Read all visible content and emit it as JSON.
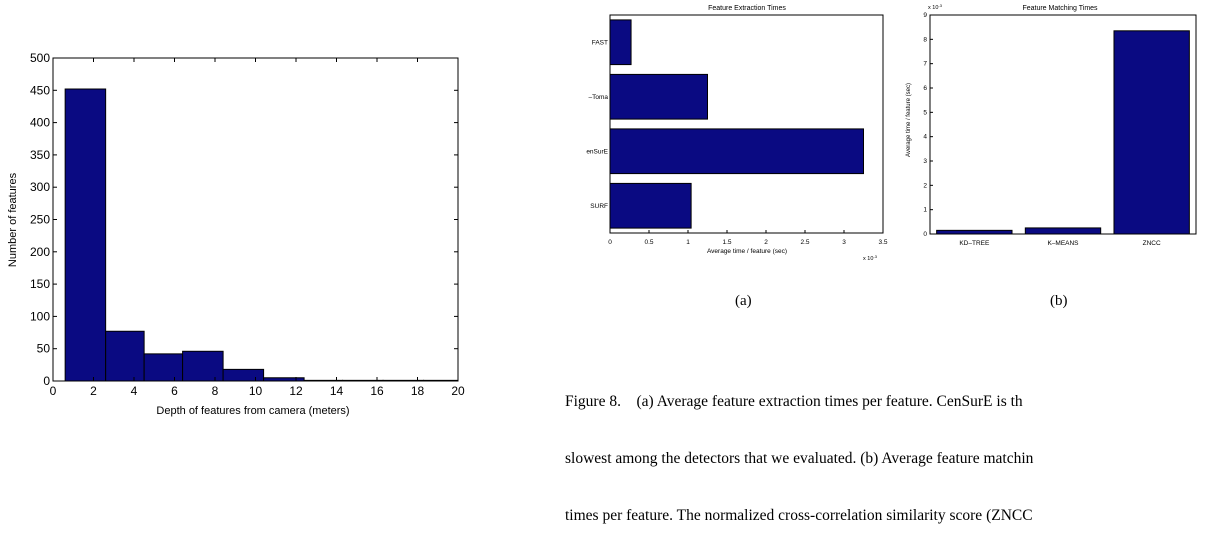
{
  "colors": {
    "bar": "#0a0a82",
    "axis": "#000000",
    "background": "#ffffff"
  },
  "chart_data": [
    {
      "type": "bar",
      "title": "",
      "xlabel": "Depth of features from camera (meters)",
      "ylabel": "Number of features",
      "xlim": [
        0,
        20
      ],
      "ylim": [
        0,
        500
      ],
      "xticks": [
        0,
        2,
        4,
        6,
        8,
        10,
        12,
        14,
        16,
        18,
        20
      ],
      "yticks": [
        0,
        50,
        100,
        150,
        200,
        250,
        300,
        350,
        400,
        450,
        500
      ],
      "bins": [
        {
          "start": 0.6,
          "end": 2.6,
          "value": 452
        },
        {
          "start": 2.6,
          "end": 4.5,
          "value": 77
        },
        {
          "start": 4.5,
          "end": 6.4,
          "value": 42
        },
        {
          "start": 6.4,
          "end": 8.4,
          "value": 46
        },
        {
          "start": 8.4,
          "end": 10.4,
          "value": 18
        },
        {
          "start": 10.4,
          "end": 12.4,
          "value": 5
        },
        {
          "start": 12.4,
          "end": 14.3,
          "value": 1
        },
        {
          "start": 14.3,
          "end": 16.3,
          "value": 1
        },
        {
          "start": 16.3,
          "end": 18.3,
          "value": 1
        },
        {
          "start": 18.3,
          "end": 20.0,
          "value": 1
        }
      ]
    },
    {
      "type": "bar",
      "orientation": "horizontal",
      "title": "Feature Extraction Times",
      "xlabel": "Average time / feature (sec)",
      "ylabel": "",
      "multiplier_label": "x 10",
      "multiplier_exp": "-3",
      "categories": [
        "FAST",
        "Harris–Tomasi",
        "CenSurE",
        "SURF"
      ],
      "category_labels_visible": [
        "FAST",
        "–Toma",
        "enSurE",
        "SURF"
      ],
      "values": [
        0.27,
        1.25,
        3.25,
        1.04
      ],
      "xlim": [
        0,
        3.5
      ],
      "xticks": [
        "0",
        "0.5",
        "1",
        "1.5",
        "2",
        "2.5",
        "3",
        "3.5"
      ],
      "subfigure_label": "(a)"
    },
    {
      "type": "bar",
      "title": "Feature Matching Times",
      "xlabel": "",
      "ylabel": "Average time / feature (sec)",
      "multiplier_label": "x 10",
      "multiplier_exp": "-3",
      "categories": [
        "KD–TREE",
        "K–MEANS",
        "ZNCC"
      ],
      "values": [
        0.15,
        0.25,
        8.35
      ],
      "ylim": [
        0,
        9
      ],
      "yticks": [
        "0",
        "1",
        "2",
        "3",
        "4",
        "5",
        "6",
        "7",
        "8",
        "9"
      ],
      "subfigure_label": "(b)"
    }
  ],
  "caption": {
    "lines": [
      "Figure 8.    (a) Average feature extraction times per feature. CenSurE is th",
      "slowest among the detectors that we evaluated. (b) Average feature matchin",
      "times per feature. The normalized cross-correlation similarity score (ZNCC"
    ]
  }
}
